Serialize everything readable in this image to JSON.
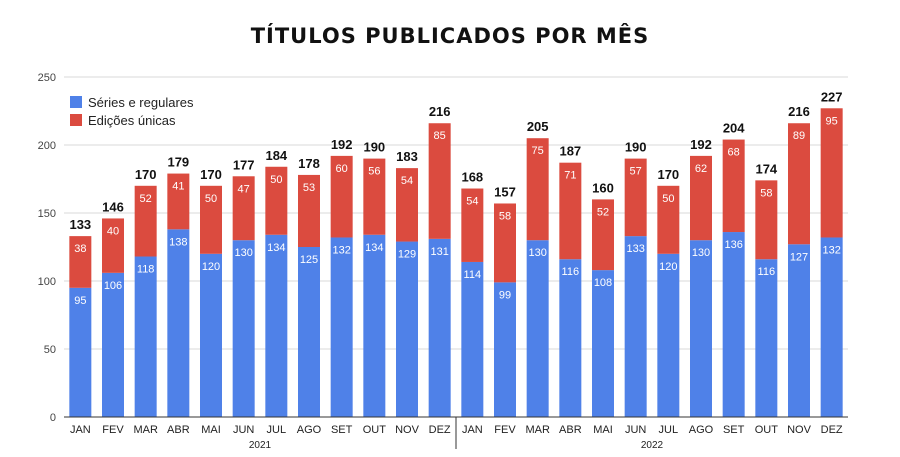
{
  "chart_data": {
    "type": "bar",
    "stacked": true,
    "title": "TÍTULOS PUBLICADOS POR MÊS",
    "categories": [
      "JAN",
      "FEV",
      "MAR",
      "ABR",
      "MAI",
      "JUN",
      "JUL",
      "AGO",
      "SET",
      "OUT",
      "NOV",
      "DEZ",
      "JAN",
      "FEV",
      "MAR",
      "ABR",
      "MAI",
      "JUN",
      "JUL",
      "AGO",
      "SET",
      "OUT",
      "NOV",
      "DEZ"
    ],
    "groups": [
      {
        "label": "2021",
        "count": 12
      },
      {
        "label": "2022",
        "count": 12
      }
    ],
    "series": [
      {
        "name": "Séries e regulares",
        "color": "#4f81e8",
        "values": [
          95,
          106,
          118,
          138,
          120,
          130,
          134,
          125,
          132,
          134,
          129,
          131,
          114,
          99,
          130,
          116,
          108,
          133,
          120,
          130,
          136,
          116,
          127,
          132
        ]
      },
      {
        "name": "Edições únicas",
        "color": "#db4b3f",
        "values": [
          38,
          40,
          52,
          41,
          50,
          47,
          50,
          53,
          60,
          56,
          54,
          85,
          54,
          58,
          75,
          71,
          52,
          57,
          50,
          62,
          68,
          58,
          89,
          95
        ]
      }
    ],
    "totals": [
      133,
      146,
      170,
      179,
      170,
      177,
      184,
      178,
      192,
      190,
      183,
      216,
      168,
      157,
      205,
      187,
      160,
      190,
      170,
      192,
      204,
      174,
      216,
      227
    ],
    "ylim": [
      0,
      250
    ],
    "yticks": [
      0,
      50,
      100,
      150,
      200,
      250
    ],
    "grid": true,
    "legend_position": "top-left"
  }
}
